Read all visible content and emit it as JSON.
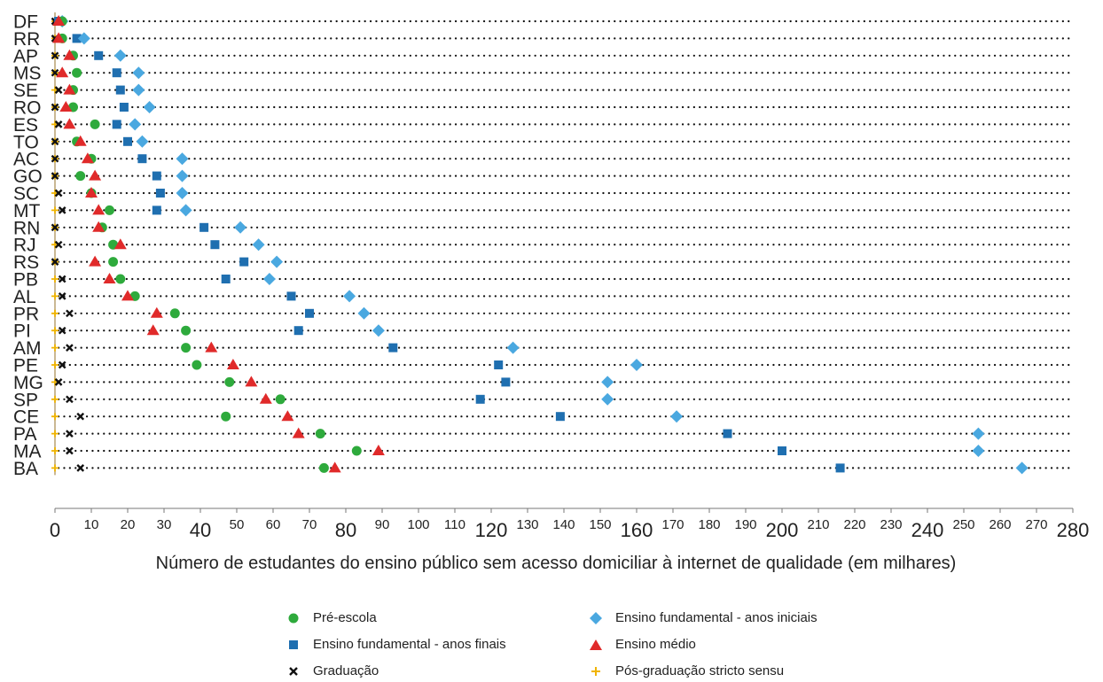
{
  "chart_data": {
    "type": "scatter",
    "title": "",
    "xlabel": "Número de estudantes do ensino público sem acesso domiciliar à internet de qualidade (em milhares)",
    "ylabel": "",
    "xlim": [
      0,
      280
    ],
    "x_ticks": [
      0,
      10,
      20,
      30,
      40,
      50,
      60,
      70,
      80,
      90,
      100,
      110,
      120,
      130,
      140,
      150,
      160,
      170,
      180,
      190,
      200,
      210,
      220,
      230,
      240,
      250,
      260,
      270,
      280
    ],
    "x_ticks_large": [
      0,
      40,
      80,
      120,
      160,
      200,
      240,
      280
    ],
    "categories": [
      "DF",
      "RR",
      "AP",
      "MS",
      "SE",
      "RO",
      "ES",
      "TO",
      "AC",
      "GO",
      "SC",
      "MT",
      "RN",
      "RJ",
      "RS",
      "PB",
      "AL",
      "PR",
      "PI",
      "AM",
      "PE",
      "MG",
      "SP",
      "CE",
      "PA",
      "MA",
      "BA"
    ],
    "legend_position": "bottom",
    "series": [
      {
        "name": "Pré-escola",
        "marker": "circle",
        "color": "#2eaa3c",
        "values": [
          2,
          2,
          5,
          6,
          5,
          5,
          11,
          6,
          10,
          7,
          10,
          15,
          13,
          16,
          16,
          18,
          22,
          33,
          36,
          36,
          39,
          48,
          62,
          47,
          73,
          83,
          74
        ]
      },
      {
        "name": "Ensino fundamental - anos iniciais",
        "marker": "diamond",
        "color": "#4aa8e0",
        "values": [
          2,
          8,
          18,
          23,
          23,
          26,
          22,
          24,
          35,
          35,
          35,
          36,
          51,
          56,
          61,
          59,
          81,
          85,
          89,
          126,
          160,
          152,
          152,
          171,
          254,
          254,
          266
        ]
      },
      {
        "name": "Ensino fundamental - anos finais",
        "marker": "square",
        "color": "#1f6fb0",
        "values": [
          1,
          6,
          12,
          17,
          18,
          19,
          17,
          20,
          24,
          28,
          29,
          28,
          41,
          44,
          52,
          47,
          65,
          70,
          67,
          93,
          122,
          124,
          117,
          139,
          185,
          200,
          216
        ]
      },
      {
        "name": "Ensino médio",
        "marker": "triangle",
        "color": "#e02a2a",
        "values": [
          1,
          1,
          4,
          2,
          4,
          3,
          4,
          7,
          9,
          11,
          10,
          12,
          12,
          18,
          11,
          15,
          20,
          28,
          27,
          43,
          49,
          54,
          58,
          64,
          67,
          89,
          77
        ]
      },
      {
        "name": "Graduação",
        "marker": "x",
        "color": "#111111",
        "values": [
          0,
          0,
          0,
          0,
          1,
          0,
          1,
          0,
          0,
          0,
          1,
          2,
          0,
          1,
          0,
          2,
          2,
          4,
          2,
          4,
          2,
          1,
          4,
          7,
          4,
          4,
          7
        ]
      },
      {
        "name": "Pós-graduação stricto sensu",
        "marker": "plus",
        "color": "#f0b400",
        "values": [
          0,
          0,
          0,
          0,
          0,
          0,
          0,
          0,
          0,
          0,
          0,
          0,
          0,
          0,
          0,
          0,
          0,
          0,
          0,
          0,
          0,
          0,
          0,
          0,
          0,
          0,
          0
        ]
      }
    ]
  }
}
